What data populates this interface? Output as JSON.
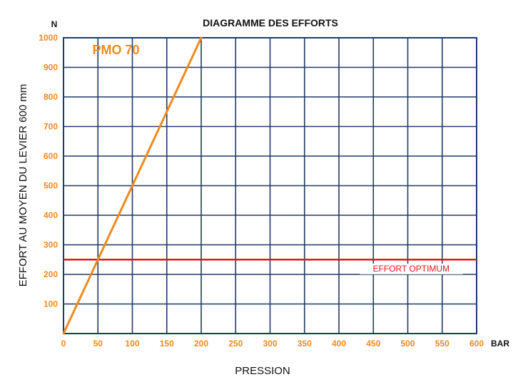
{
  "chart_data": {
    "type": "line",
    "title": "DIAGRAMME DES EFFORTS",
    "ylabel": "EFFORT AU MOYEN DU LEVIER 600 mm",
    "xlabel": "PRESSION",
    "y_unit": "N",
    "x_unit": "BAR",
    "xlim": [
      0,
      600
    ],
    "ylim": [
      0,
      1000
    ],
    "x_ticks": [
      0,
      50,
      100,
      150,
      200,
      250,
      300,
      350,
      400,
      450,
      500,
      550,
      600
    ],
    "y_ticks": [
      100,
      200,
      300,
      400,
      500,
      600,
      700,
      800,
      900,
      1000
    ],
    "grid": true,
    "colors": {
      "grid": "#1f3a68",
      "ticks": "#f08a1c",
      "series": "#f08a1c",
      "reference": "#e8141c"
    },
    "series": [
      {
        "name": "PMO 70",
        "x": [
          0,
          200
        ],
        "y": [
          0,
          1000
        ]
      }
    ],
    "reference_line": {
      "label": "EFFORT OPTIMUM",
      "y": 250
    }
  }
}
